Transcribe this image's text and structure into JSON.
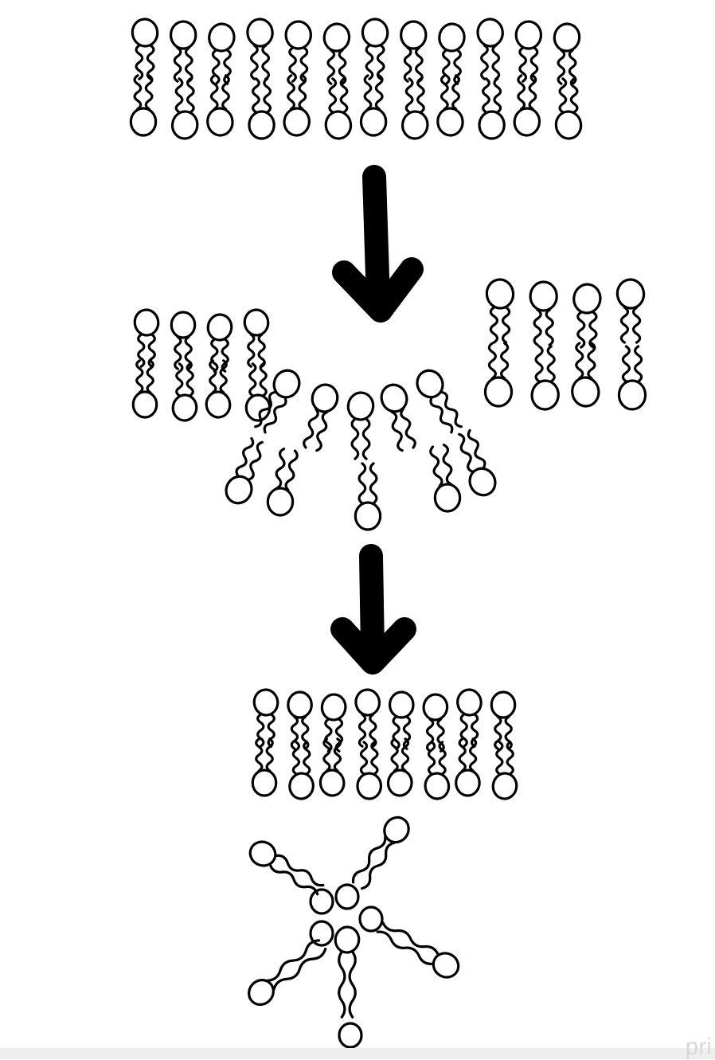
{
  "diagram": {
    "stages": [
      {
        "id": "intact-bilayer",
        "upper_lipids": 12,
        "lower_lipids": 12
      },
      {
        "id": "bilayer-disruption",
        "left_fragment_lipids": 4,
        "right_fragment_lipids": 4,
        "curved_cluster_lipids": 6
      },
      {
        "id": "reformed-bilayer-and-micelle",
        "bilayer_lipids_per_leaflet": 8,
        "micelle_lipids": 6
      }
    ],
    "arrows": [
      {
        "from": "intact-bilayer",
        "to": "bilayer-disruption"
      },
      {
        "from": "bilayer-disruption",
        "to": "reformed-bilayer-and-micelle"
      }
    ],
    "ink_color": "#000000",
    "background_color": "#ffffff"
  },
  "watermark": {
    "text": "pri"
  }
}
